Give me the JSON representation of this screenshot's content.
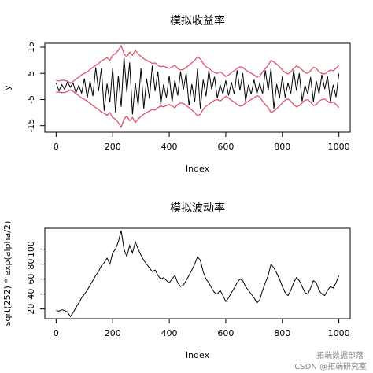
{
  "chart_data": [
    {
      "type": "line",
      "title": "模拟收益率",
      "x_label": "Index",
      "y_label": "y",
      "x": [
        0,
        10,
        20,
        30,
        40,
        50,
        60,
        70,
        80,
        90,
        100,
        110,
        120,
        130,
        140,
        150,
        160,
        170,
        180,
        190,
        200,
        210,
        220,
        230,
        240,
        250,
        260,
        270,
        280,
        290,
        300,
        310,
        320,
        330,
        340,
        350,
        360,
        370,
        380,
        390,
        400,
        410,
        420,
        430,
        440,
        450,
        460,
        470,
        480,
        490,
        500,
        510,
        520,
        530,
        540,
        550,
        560,
        570,
        580,
        590,
        600,
        610,
        620,
        630,
        640,
        650,
        660,
        670,
        680,
        690,
        700,
        710,
        720,
        730,
        740,
        750,
        760,
        770,
        780,
        790,
        800,
        810,
        820,
        830,
        840,
        850,
        860,
        870,
        880,
        890,
        900,
        910,
        920,
        930,
        940,
        950,
        960,
        970,
        980,
        990,
        1000
      ],
      "series": [
        {
          "color": "#000000",
          "values": [
            1.4,
            -1.7,
            0.7,
            -1.2,
            1.8,
            -0.3,
            1.3,
            -2.5,
            0.4,
            -2.6,
            3.0,
            -4.5,
            2.0,
            -3.7,
            7.3,
            -1.8,
            6.9,
            -9.3,
            1.1,
            -6.0,
            7.1,
            -10.0,
            4.1,
            -7.8,
            11.3,
            -2.3,
            9.2,
            -10.7,
            1.4,
            -7.5,
            6.9,
            -8.5,
            3.0,
            -4.7,
            7.9,
            -1.8,
            5.7,
            -6.8,
            0.8,
            -4.4,
            4.1,
            -6.0,
            2.4,
            -3.5,
            5.7,
            -1.3,
            5.1,
            -7.3,
            0.9,
            -6.0,
            6.8,
            -8.5,
            2.6,
            -3.8,
            6.2,
            -1.2,
            3.7,
            -4.5,
            0.6,
            -2.9,
            2.3,
            -3.5,
            1.6,
            -3.0,
            6.2,
            -1.5,
            5.1,
            -5.7,
            0.6,
            -3.0,
            2.6,
            -2.8,
            1.2,
            -2.8,
            6.2,
            -1.6,
            7.0,
            -8.5,
            0.9,
            -4.5,
            3.8,
            -4.2,
            1.4,
            -2.8,
            6.2,
            -1.6,
            5.1,
            -5.7,
            0.5,
            -3.0,
            3.6,
            -5.8,
            2.1,
            -2.8,
            4.5,
            -1.0,
            3.9,
            -5.7,
            0.6,
            -4.1,
            4.9
          ]
        },
        {
          "color": "#df536b",
          "values": [
            2.3,
            2.1,
            2.4,
            2.3,
            2.0,
            1.3,
            1.9,
            2.8,
            3.5,
            4.4,
            5.0,
            5.6,
            6.5,
            7.3,
            8.1,
            8.8,
            9.8,
            10.3,
            11.0,
            10.0,
            11.9,
            12.5,
            13.8,
            15.6,
            12.5,
            11.3,
            13.1,
            11.9,
            13.8,
            12.5,
            11.5,
            10.6,
            10.0,
            9.4,
            8.8,
            9.0,
            8.1,
            7.5,
            7.8,
            7.3,
            6.9,
            7.5,
            8.1,
            6.9,
            6.3,
            6.5,
            7.3,
            8.1,
            9.0,
            10.0,
            11.3,
            10.6,
            8.8,
            7.5,
            6.9,
            6.0,
            5.3,
            5.0,
            5.6,
            4.8,
            3.8,
            4.4,
            5.3,
            6.0,
            6.9,
            7.5,
            7.3,
            6.3,
            5.6,
            5.0,
            4.4,
            3.5,
            4.0,
            5.6,
            6.9,
            8.1,
            10.0,
            9.4,
            8.5,
            7.5,
            6.3,
            5.3,
            4.8,
            5.6,
            6.9,
            7.8,
            7.3,
            6.3,
            5.3,
            5.0,
            6.0,
            7.3,
            6.9,
            5.6,
            5.0,
            4.8,
            5.6,
            6.3,
            6.0,
            6.9,
            8.1
          ]
        },
        {
          "color": "#df536b",
          "values": [
            -2.3,
            -2.1,
            -2.4,
            -2.3,
            -2.0,
            -1.3,
            -1.9,
            -2.8,
            -3.5,
            -4.4,
            -5.0,
            -5.6,
            -6.5,
            -7.3,
            -8.1,
            -8.8,
            -9.8,
            -10.3,
            -11.0,
            -10.0,
            -11.9,
            -12.5,
            -13.8,
            -15.6,
            -12.5,
            -11.3,
            -13.1,
            -11.9,
            -13.8,
            -12.5,
            -11.5,
            -10.6,
            -10.0,
            -9.4,
            -8.8,
            -9.0,
            -8.1,
            -7.5,
            -7.8,
            -7.3,
            -6.9,
            -7.5,
            -8.1,
            -6.9,
            -6.3,
            -6.5,
            -7.3,
            -8.1,
            -9.0,
            -10.0,
            -11.3,
            -10.6,
            -8.8,
            -7.5,
            -6.9,
            -6.0,
            -5.3,
            -5.0,
            -5.6,
            -4.8,
            -3.8,
            -4.4,
            -5.3,
            -6.0,
            -6.9,
            -7.5,
            -7.3,
            -6.3,
            -5.6,
            -5.0,
            -4.4,
            -3.5,
            -4.0,
            -5.6,
            -6.9,
            -8.1,
            -10.0,
            -9.4,
            -8.5,
            -7.5,
            -6.3,
            -5.3,
            -4.8,
            -5.6,
            -6.9,
            -7.8,
            -7.3,
            -6.3,
            -5.3,
            -5.0,
            -6.0,
            -7.3,
            -6.9,
            -5.6,
            -5.0,
            -4.8,
            -5.6,
            -6.3,
            -6.0,
            -6.9,
            -8.1
          ]
        }
      ],
      "xlim": [
        -40,
        1040
      ],
      "ylim": [
        -17.5,
        16.5
      ],
      "xticks": [
        0,
        200,
        400,
        600,
        800,
        1000
      ],
      "yticks": [
        -15,
        -5,
        5,
        15
      ]
    },
    {
      "type": "line",
      "title": "模拟波动率",
      "x_label": "Index",
      "y_label": "sqrt(252) * exp(alpha/2)",
      "x": [
        0,
        10,
        20,
        30,
        40,
        50,
        60,
        70,
        80,
        90,
        100,
        110,
        120,
        130,
        140,
        150,
        160,
        170,
        180,
        190,
        200,
        210,
        220,
        230,
        240,
        250,
        260,
        270,
        280,
        290,
        300,
        310,
        320,
        330,
        340,
        350,
        360,
        370,
        380,
        390,
        400,
        410,
        420,
        430,
        440,
        450,
        460,
        470,
        480,
        490,
        500,
        510,
        520,
        530,
        540,
        550,
        560,
        570,
        580,
        590,
        600,
        610,
        620,
        630,
        640,
        650,
        660,
        670,
        680,
        690,
        700,
        710,
        720,
        730,
        740,
        750,
        760,
        770,
        780,
        790,
        800,
        810,
        820,
        830,
        840,
        850,
        860,
        870,
        880,
        890,
        900,
        910,
        920,
        930,
        940,
        950,
        960,
        970,
        980,
        990,
        1000
      ],
      "series": [
        {
          "color": "#000000",
          "values": [
            18,
            17,
            19,
            18,
            16,
            10,
            15,
            22,
            28,
            35,
            40,
            45,
            52,
            58,
            65,
            70,
            78,
            82,
            88,
            80,
            95,
            100,
            110,
            125,
            100,
            90,
            105,
            95,
            110,
            100,
            92,
            85,
            80,
            75,
            70,
            72,
            65,
            60,
            62,
            58,
            55,
            60,
            65,
            55,
            50,
            52,
            58,
            65,
            72,
            80,
            90,
            85,
            70,
            60,
            55,
            48,
            42,
            40,
            45,
            38,
            30,
            35,
            42,
            48,
            55,
            60,
            58,
            50,
            45,
            40,
            35,
            28,
            32,
            45,
            55,
            65,
            80,
            75,
            68,
            60,
            50,
            42,
            38,
            45,
            55,
            62,
            58,
            50,
            42,
            40,
            48,
            58,
            55,
            45,
            40,
            38,
            45,
            50,
            48,
            55,
            65
          ]
        }
      ],
      "xlim": [
        -40,
        1040
      ],
      "ylim": [
        7,
        128
      ],
      "xticks": [
        0,
        200,
        400,
        600,
        800,
        1000
      ],
      "yticks": [
        20,
        40,
        60,
        80,
        100
      ]
    }
  ],
  "watermark": {
    "line1": "拓端数据部落",
    "line2": "CSDN @拓端研究室"
  }
}
